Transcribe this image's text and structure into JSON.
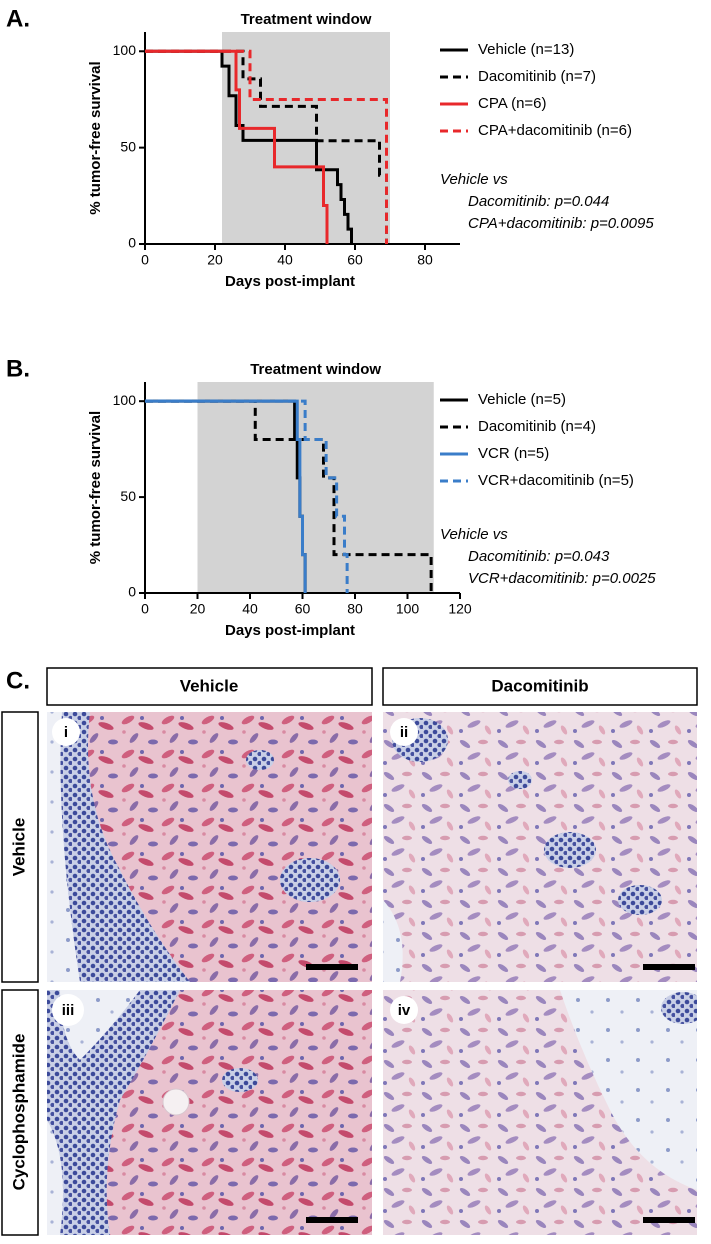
{
  "chart_data": [
    {
      "type": "step",
      "panel_label": "A.",
      "shade_label": "Treatment window",
      "shade": [
        22,
        70
      ],
      "shade_color": "#d3d3d3",
      "xlabel": "Days post-implant",
      "ylabel": "% tumor-free survival",
      "xlim": [
        0,
        90
      ],
      "xticks": [
        0,
        20,
        40,
        60,
        80
      ],
      "ylim": [
        0,
        110
      ],
      "yticks": [
        0,
        50,
        100
      ],
      "series": [
        {
          "name": "Vehicle (n=13)",
          "color": "#000000",
          "dashed": false,
          "x": [
            0,
            22,
            24,
            26,
            28,
            49,
            55,
            56,
            57,
            58,
            59
          ],
          "values": [
            100,
            92.3,
            76.9,
            61.5,
            53.8,
            38.5,
            30.8,
            23.1,
            15.4,
            7.7,
            0
          ]
        },
        {
          "name": "Dacomitinib (n=7)",
          "color": "#000000",
          "dashed": true,
          "x": [
            0,
            28,
            33,
            49,
            67,
            69
          ],
          "values": [
            100,
            85.7,
            71.4,
            53.6,
            35.7,
            0
          ]
        },
        {
          "name": "CPA (n=6)",
          "color": "#e8282b",
          "dashed": false,
          "x": [
            0,
            26,
            27,
            37,
            51,
            52
          ],
          "values": [
            100,
            80,
            60,
            40,
            20,
            0
          ]
        },
        {
          "name": "CPA+dacomitinib (n=6)",
          "color": "#e8282b",
          "dashed": true,
          "x": [
            0,
            30,
            69
          ],
          "values": [
            100,
            75,
            0
          ]
        }
      ],
      "annotations": [
        "Vehicle vs",
        "Dacomitinib: p=0.044",
        "CPA+dacomitinib: p=0.0095"
      ]
    },
    {
      "type": "step",
      "panel_label": "B.",
      "shade_label": "Treatment window",
      "shade": [
        20,
        110
      ],
      "shade_color": "#d3d3d3",
      "xlabel": "Days post-implant",
      "ylabel": "% tumor-free survival",
      "xlim": [
        0,
        120
      ],
      "xticks": [
        0,
        20,
        40,
        60,
        80,
        100,
        120
      ],
      "ylim": [
        0,
        110
      ],
      "yticks": [
        0,
        50,
        100
      ],
      "series": [
        {
          "name": "Vehicle (n=5)",
          "color": "#000000",
          "dashed": false,
          "x": [
            0,
            57,
            58,
            59,
            60,
            61
          ],
          "values": [
            100,
            80,
            60,
            40,
            20,
            0
          ]
        },
        {
          "name": "Dacomitinib (n=4)",
          "color": "#000000",
          "dashed": true,
          "x": [
            0,
            42,
            68,
            72,
            109
          ],
          "values": [
            100,
            80,
            60,
            20,
            0
          ]
        },
        {
          "name": "VCR (n=5)",
          "color": "#3a7dc9",
          "dashed": false,
          "x": [
            0,
            58,
            59,
            60,
            61
          ],
          "values": [
            100,
            80,
            40,
            20,
            0
          ]
        },
        {
          "name": "VCR+dacomitinib (n=5)",
          "color": "#3a7dc9",
          "dashed": true,
          "x": [
            0,
            61,
            69,
            73,
            76,
            77
          ],
          "values": [
            100,
            80,
            60,
            40,
            20,
            0
          ]
        }
      ],
      "annotations": [
        "Vehicle vs",
        "Dacomitinib: p=0.043",
        "VCR+dacomitinib: p=0.0025"
      ]
    }
  ],
  "panel_c": {
    "label": "C.",
    "columns": [
      "Vehicle",
      "Dacomitinib"
    ],
    "rows": [
      "Vehicle",
      "Cyclophosphamide"
    ],
    "images": [
      "i",
      "ii",
      "iii",
      "iv"
    ]
  }
}
